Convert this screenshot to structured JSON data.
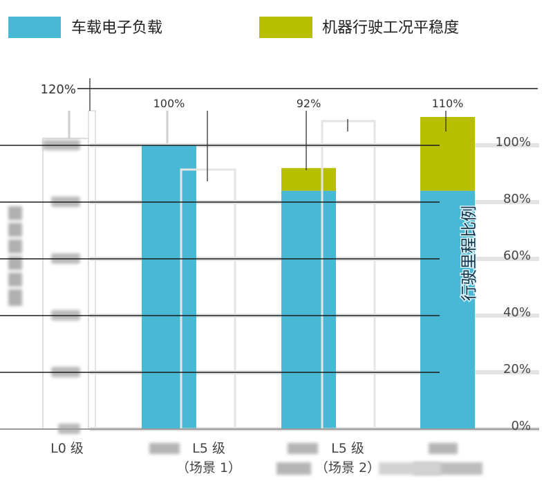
{
  "chart_data": {
    "type": "bar",
    "stacked": true,
    "categories": [
      "L0 级",
      "L5 级\n（场景 1）",
      "L5 级\n（场景 2）",
      ""
    ],
    "series": [
      {
        "name": "车载电子负载",
        "values": [
          null,
          100,
          84,
          84
        ],
        "color": "#48b8d4"
      },
      {
        "name": "机器行驶工况平稳度",
        "values": [
          null,
          0,
          8,
          26
        ],
        "color": "#b8bf00"
      }
    ],
    "data_labels": [
      "",
      "100%",
      "92%",
      "110%"
    ],
    "ylim": [
      0,
      120
    ],
    "y_ticks": [
      0,
      20,
      40,
      60,
      80,
      100
    ],
    "y_tick_labels": [
      "0%",
      "20%",
      "40%",
      "60%",
      "80%",
      "100%"
    ],
    "y_max_label": "120%",
    "ylabel": "行驶里程比例",
    "legend_position": "top",
    "grid": true
  }
}
